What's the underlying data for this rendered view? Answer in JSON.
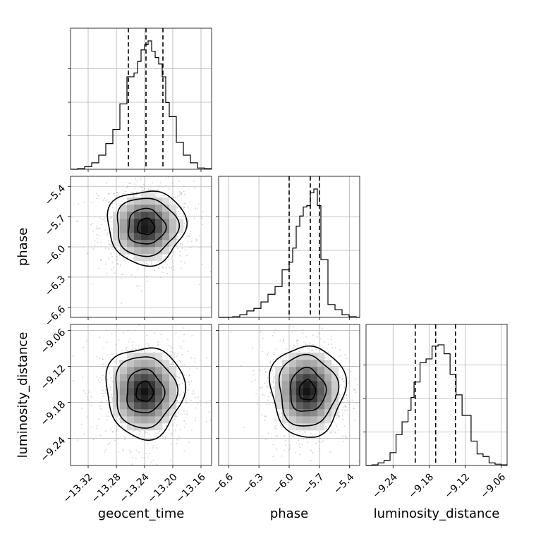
{
  "chart_data": {
    "type": "corner",
    "parameters": [
      "geocent_time",
      "phase",
      "luminosity_distance"
    ],
    "labels": {
      "geocent_time": "geocent_time",
      "phase": "phase",
      "luminosity_distance": "luminosity_distance"
    },
    "ranges": {
      "geocent_time": [
        -13.345,
        -13.145
      ],
      "phase": [
        -6.7,
        -5.3
      ],
      "luminosity_distance": [
        -9.285,
        -9.05
      ]
    },
    "ticks": {
      "geocent_time": [
        -13.32,
        -13.28,
        -13.24,
        -13.2,
        -13.16
      ],
      "phase": [
        -6.6,
        -6.3,
        -6.0,
        -5.7,
        -5.4
      ],
      "luminosity_distance": [
        -9.24,
        -9.18,
        -9.12,
        -9.06
      ]
    },
    "tick_labels": {
      "geocent_time": [
        "−13.32",
        "−13.28",
        "−13.24",
        "−13.20",
        "−13.16"
      ],
      "phase": [
        "−6.6",
        "−6.3",
        "−6.0",
        "−5.7",
        "−5.4"
      ],
      "luminosity_distance": [
        "−9.24",
        "−9.18",
        "−9.12",
        "−9.06"
      ]
    },
    "histograms": {
      "geocent_time": {
        "edges": [
          -13.345,
          -13.335,
          -13.325,
          -13.315,
          -13.305,
          -13.295,
          -13.285,
          -13.275,
          -13.265,
          -13.255,
          -13.25,
          -13.245,
          -13.24,
          -13.235,
          -13.23,
          -13.225,
          -13.22,
          -13.215,
          -13.21,
          -13.205,
          -13.195,
          -13.185,
          -13.175,
          -13.165,
          -13.155,
          -13.145
        ],
        "counts": [
          0.0,
          0.005,
          0.02,
          0.05,
          0.11,
          0.2,
          0.31,
          0.51,
          0.72,
          0.75,
          0.84,
          0.93,
          0.97,
          1.0,
          0.92,
          0.87,
          0.82,
          0.72,
          0.52,
          0.41,
          0.21,
          0.11,
          0.05,
          0.01,
          0.005
        ],
        "quantiles": [
          -13.263,
          -13.238,
          -13.214
        ]
      },
      "phase": {
        "edges": [
          -6.7,
          -6.63,
          -6.56,
          -6.49,
          -6.42,
          -6.35,
          -6.28,
          -6.21,
          -6.14,
          -6.07,
          -6.0,
          -5.965,
          -5.93,
          -5.895,
          -5.86,
          -5.825,
          -5.79,
          -5.755,
          -5.72,
          -5.685,
          -5.615,
          -5.545,
          -5.475,
          -5.405,
          -5.335,
          -5.3
        ],
        "counts": [
          0.0,
          0.0,
          0.005,
          0.02,
          0.05,
          0.07,
          0.12,
          0.18,
          0.24,
          0.37,
          0.43,
          0.54,
          0.71,
          0.79,
          0.86,
          0.87,
          0.97,
          1.0,
          0.87,
          0.45,
          0.1,
          0.06,
          0.02,
          0.005,
          0.0
        ],
        "quantiles": [
          -6.0,
          -5.79,
          -5.7
        ]
      },
      "luminosity_distance": {
        "edges": [
          -9.285,
          -9.275,
          -9.265,
          -9.255,
          -9.245,
          -9.235,
          -9.225,
          -9.215,
          -9.21,
          -9.205,
          -9.2,
          -9.195,
          -9.19,
          -9.185,
          -9.18,
          -9.175,
          -9.17,
          -9.165,
          -9.16,
          -9.155,
          -9.15,
          -9.145,
          -9.14,
          -9.135,
          -9.13,
          -9.125,
          -9.12,
          -9.11,
          -9.1,
          -9.09,
          -9.08,
          -9.07,
          -9.06,
          -9.05
        ],
        "counts": [
          0.0,
          0.005,
          0.02,
          0.04,
          0.1,
          0.24,
          0.34,
          0.43,
          0.53,
          0.65,
          0.65,
          0.8,
          0.8,
          0.83,
          0.83,
          0.93,
          0.93,
          0.94,
          0.94,
          0.87,
          0.87,
          0.71,
          0.71,
          0.55,
          0.55,
          0.39,
          0.39,
          0.19,
          0.09,
          0.07,
          0.02,
          0.01,
          0.005
        ],
        "quantiles": [
          -9.203,
          -9.169,
          -9.136
        ]
      }
    },
    "joint": [
      {
        "x": "geocent_time",
        "y": "phase",
        "peak": [
          -13.238,
          -5.8
        ],
        "sigma": [
          0.024,
          0.16
        ]
      },
      {
        "x": "geocent_time",
        "y": "luminosity_distance",
        "peak": [
          -13.24,
          -9.162
        ],
        "sigma": [
          0.024,
          0.033
        ]
      },
      {
        "x": "phase",
        "y": "luminosity_distance",
        "peak": [
          -5.82,
          -9.16
        ],
        "sigma": [
          0.16,
          0.033
        ]
      }
    ],
    "grid": true
  }
}
